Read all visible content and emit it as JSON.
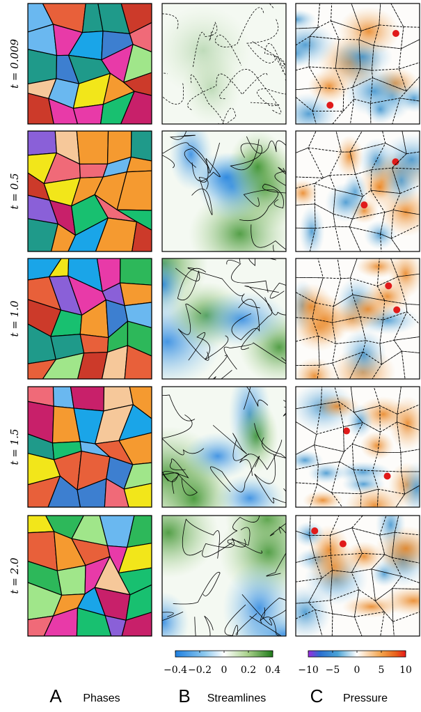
{
  "rows": [
    {
      "label": "t = 0.009"
    },
    {
      "label": "t = 0.5"
    },
    {
      "label": "t = 1.0"
    },
    {
      "label": "t = 1.5"
    },
    {
      "label": "t = 2.0"
    }
  ],
  "columns": [
    {
      "letter": "A",
      "title": "Phases"
    },
    {
      "letter": "B",
      "title": "Streamlines"
    },
    {
      "letter": "C",
      "title": "Pressure"
    }
  ],
  "colorbars": [
    {
      "lim": [
        -0.4,
        0.4
      ],
      "ticks": [
        {
          "value": -0.4,
          "label": "−0.4"
        },
        {
          "value": -0.2,
          "label": "−0.2"
        },
        0,
        0.2,
        0.4
      ]
    },
    {
      "lim": [
        -10,
        10
      ],
      "ticks": [
        {
          "value": -10,
          "label": "−10"
        },
        {
          "value": -5,
          "label": "−5"
        },
        0,
        5,
        10
      ]
    }
  ]
}
